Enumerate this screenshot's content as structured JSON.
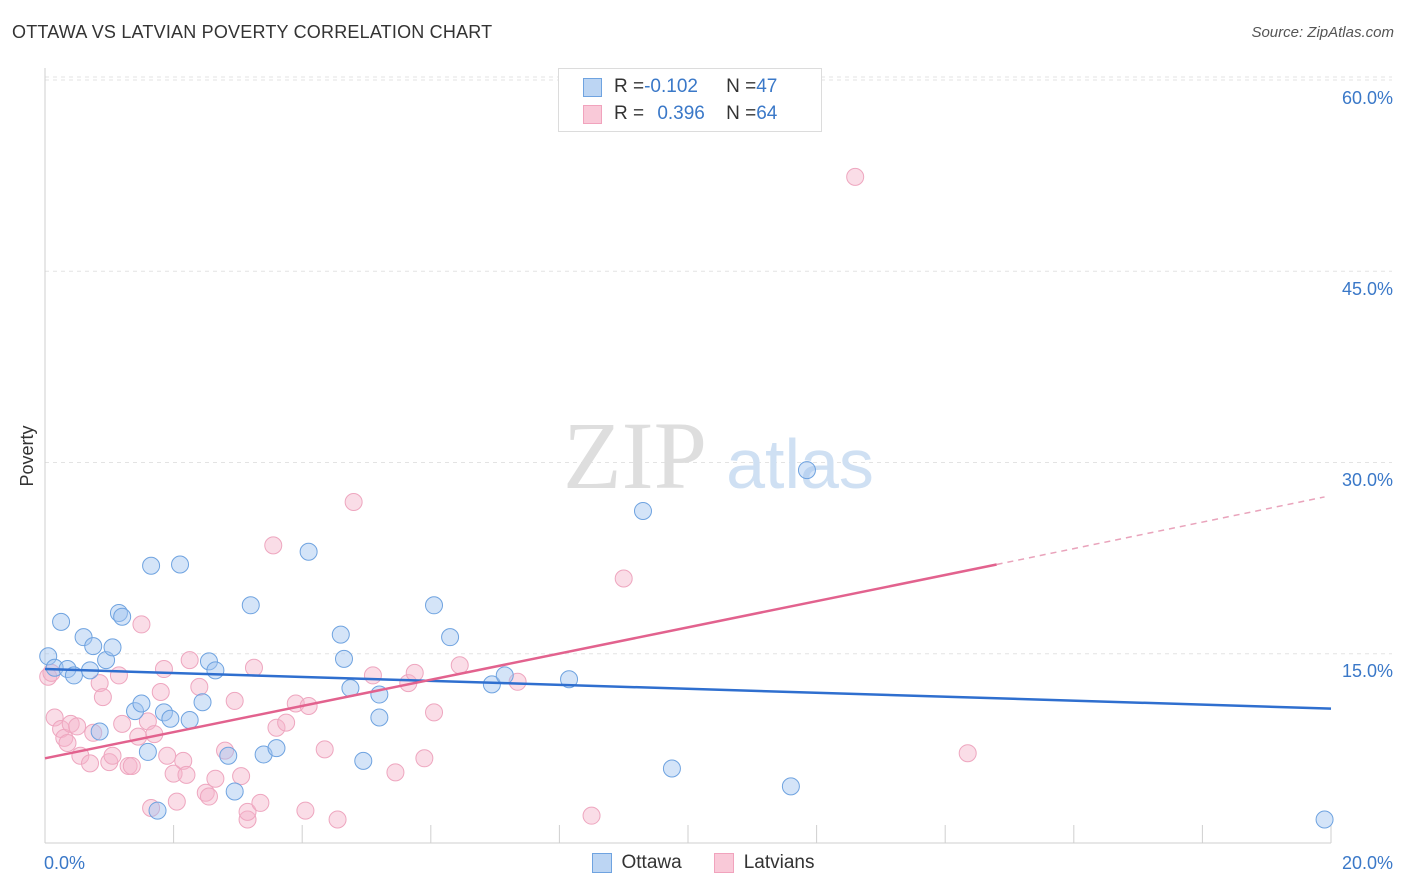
{
  "header": {
    "title": "OTTAWA VS LATVIAN POVERTY CORRELATION CHART",
    "source": "Source: ZipAtlas.com"
  },
  "watermark": {
    "zip": "ZIP",
    "atlas": "atlas"
  },
  "colors": {
    "blue": "#6fa3e0",
    "blue_line": "#2f6fcf",
    "pink": "#f1a3bd",
    "pink_line": "#e2628e",
    "axis_text": "#3a78c8"
  },
  "legend": {
    "rows": [
      {
        "r_label": "R = ",
        "r_value": "-0.102",
        "n_label": "N = ",
        "n_value": "47"
      },
      {
        "r_label": "R = ",
        "r_value": "0.396",
        "n_label": "N = ",
        "n_value": "64"
      }
    ]
  },
  "chart_data": {
    "type": "scatter",
    "ylabel": "Poverty",
    "x_ticks": [
      "0.0%",
      "20.0%"
    ],
    "y_ticks": [
      "15.0%",
      "30.0%",
      "45.0%",
      "60.0%"
    ],
    "xlim": [
      0,
      20
    ],
    "ylim": [
      0,
      62
    ],
    "series": [
      {
        "name": "Ottawa",
        "points": [
          [
            0.05,
            14.8
          ],
          [
            0.15,
            13.9
          ],
          [
            0.25,
            17.5
          ],
          [
            0.35,
            13.8
          ],
          [
            0.45,
            13.3
          ],
          [
            0.6,
            16.3
          ],
          [
            0.7,
            13.7
          ],
          [
            0.75,
            15.6
          ],
          [
            0.85,
            8.9
          ],
          [
            0.95,
            14.5
          ],
          [
            1.05,
            15.5
          ],
          [
            1.15,
            18.2
          ],
          [
            1.2,
            17.9
          ],
          [
            1.4,
            10.5
          ],
          [
            1.5,
            11.1
          ],
          [
            1.6,
            7.3
          ],
          [
            1.65,
            21.9
          ],
          [
            1.75,
            2.7
          ],
          [
            1.85,
            10.4
          ],
          [
            1.95,
            9.9
          ],
          [
            2.1,
            22.0
          ],
          [
            2.25,
            9.8
          ],
          [
            2.45,
            11.2
          ],
          [
            2.55,
            14.4
          ],
          [
            2.65,
            13.7
          ],
          [
            2.85,
            7.0
          ],
          [
            2.95,
            4.2
          ],
          [
            3.2,
            18.8
          ],
          [
            3.4,
            7.1
          ],
          [
            3.6,
            7.6
          ],
          [
            4.1,
            23.0
          ],
          [
            4.6,
            16.5
          ],
          [
            4.65,
            14.6
          ],
          [
            4.75,
            12.3
          ],
          [
            4.95,
            6.6
          ],
          [
            5.2,
            11.8
          ],
          [
            5.2,
            10.0
          ],
          [
            6.05,
            18.8
          ],
          [
            6.3,
            16.3
          ],
          [
            6.95,
            12.6
          ],
          [
            7.15,
            13.3
          ],
          [
            8.15,
            13.0
          ],
          [
            9.3,
            26.2
          ],
          [
            9.75,
            6.0
          ],
          [
            11.6,
            4.6
          ],
          [
            11.85,
            29.4
          ],
          [
            19.9,
            2.0
          ]
        ],
        "trend": [
          [
            0,
            13.8
          ],
          [
            20,
            10.7
          ]
        ]
      },
      {
        "name": "Latvians",
        "points": [
          [
            0.05,
            13.2
          ],
          [
            0.15,
            10.0
          ],
          [
            0.25,
            9.1
          ],
          [
            0.3,
            8.4
          ],
          [
            0.35,
            8.0
          ],
          [
            0.4,
            9.5
          ],
          [
            0.5,
            9.3
          ],
          [
            0.55,
            7.0
          ],
          [
            0.7,
            6.4
          ],
          [
            0.75,
            8.8
          ],
          [
            0.85,
            12.7
          ],
          [
            0.9,
            11.6
          ],
          [
            1.0,
            6.5
          ],
          [
            1.05,
            7.0
          ],
          [
            1.15,
            13.3
          ],
          [
            1.2,
            9.5
          ],
          [
            1.3,
            6.2
          ],
          [
            1.35,
            6.2
          ],
          [
            1.45,
            8.5
          ],
          [
            1.5,
            17.3
          ],
          [
            1.6,
            9.7
          ],
          [
            1.65,
            2.9
          ],
          [
            1.7,
            8.7
          ],
          [
            1.8,
            12.0
          ],
          [
            1.85,
            13.8
          ],
          [
            1.9,
            7.0
          ],
          [
            2.0,
            5.6
          ],
          [
            2.05,
            3.4
          ],
          [
            2.15,
            6.6
          ],
          [
            2.2,
            5.5
          ],
          [
            2.25,
            14.5
          ],
          [
            2.4,
            12.4
          ],
          [
            2.5,
            4.1
          ],
          [
            2.55,
            3.8
          ],
          [
            2.65,
            5.2
          ],
          [
            2.8,
            7.4
          ],
          [
            2.95,
            11.3
          ],
          [
            3.05,
            5.4
          ],
          [
            3.15,
            2.0
          ],
          [
            3.15,
            2.6
          ],
          [
            3.25,
            13.9
          ],
          [
            3.35,
            3.3
          ],
          [
            3.55,
            23.5
          ],
          [
            3.6,
            9.2
          ],
          [
            3.75,
            9.6
          ],
          [
            3.9,
            11.1
          ],
          [
            4.05,
            2.7
          ],
          [
            4.1,
            10.9
          ],
          [
            4.35,
            7.5
          ],
          [
            4.55,
            2.0
          ],
          [
            4.8,
            26.9
          ],
          [
            5.1,
            13.3
          ],
          [
            5.45,
            5.7
          ],
          [
            5.65,
            12.7
          ],
          [
            5.75,
            13.5
          ],
          [
            5.9,
            6.8
          ],
          [
            6.05,
            10.4
          ],
          [
            6.45,
            14.1
          ],
          [
            7.35,
            12.8
          ],
          [
            8.5,
            2.3
          ],
          [
            9.0,
            20.9
          ],
          [
            12.6,
            52.4
          ],
          [
            14.35,
            7.2
          ],
          [
            0.1,
            13.5
          ]
        ],
        "trend": [
          [
            0,
            6.8
          ],
          [
            14.8,
            22.0
          ]
        ],
        "trend_extension": [
          [
            14.8,
            22.0
          ],
          [
            19.9,
            27.3
          ]
        ]
      }
    ]
  }
}
